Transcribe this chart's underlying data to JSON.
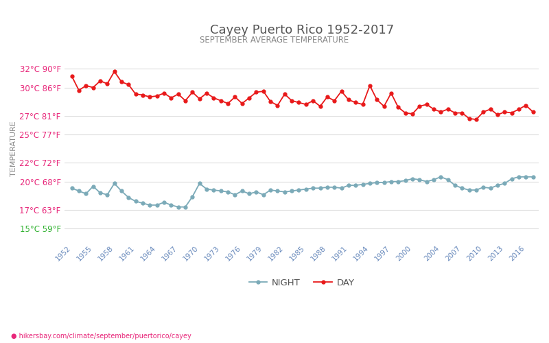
{
  "title": "Cayey Puerto Rico 1952-2017",
  "subtitle": "SEPTEMBER AVERAGE TEMPERATURE",
  "xlabel_url": "hikersbay.com/climate/september/puertorico/cayey",
  "ylabel": "TEMPERATURE",
  "legend_night": "NIGHT",
  "legend_day": "DAY",
  "years": [
    1952,
    1953,
    1954,
    1955,
    1956,
    1957,
    1958,
    1959,
    1960,
    1961,
    1962,
    1963,
    1964,
    1965,
    1966,
    1967,
    1968,
    1969,
    1970,
    1971,
    1972,
    1973,
    1974,
    1975,
    1976,
    1977,
    1978,
    1979,
    1980,
    1981,
    1982,
    1983,
    1984,
    1985,
    1986,
    1987,
    1988,
    1989,
    1990,
    1991,
    1992,
    1993,
    1994,
    1995,
    1996,
    1997,
    1998,
    1999,
    2000,
    2001,
    2002,
    2003,
    2004,
    2005,
    2006,
    2007,
    2008,
    2009,
    2010,
    2011,
    2012,
    2013,
    2014,
    2015,
    2016,
    2017
  ],
  "day_temps": [
    31.2,
    29.7,
    30.2,
    30.0,
    30.7,
    30.4,
    31.7,
    30.6,
    30.3,
    29.3,
    29.2,
    29.0,
    29.1,
    29.4,
    28.9,
    29.3,
    28.6,
    29.5,
    28.8,
    29.4,
    28.9,
    28.6,
    28.3,
    29.0,
    28.3,
    28.9,
    29.5,
    29.6,
    28.5,
    28.1,
    29.3,
    28.6,
    28.4,
    28.2,
    28.6,
    28.0,
    29.0,
    28.6,
    29.6,
    28.7,
    28.4,
    28.2,
    30.2,
    28.7,
    28.0,
    29.4,
    27.9,
    27.3,
    27.2,
    28.0,
    28.2,
    27.7,
    27.4,
    27.7,
    27.3,
    27.3,
    26.7,
    26.6,
    27.4,
    27.7,
    27.1,
    27.4,
    27.3,
    27.7,
    28.1,
    27.4
  ],
  "night_temps": [
    19.3,
    19.0,
    18.7,
    19.5,
    18.8,
    18.6,
    19.8,
    19.0,
    18.3,
    17.9,
    17.7,
    17.5,
    17.5,
    17.8,
    17.5,
    17.3,
    17.3,
    18.4,
    19.8,
    19.2,
    19.1,
    19.0,
    18.9,
    18.6,
    19.0,
    18.7,
    18.9,
    18.6,
    19.1,
    19.0,
    18.9,
    19.0,
    19.1,
    19.2,
    19.3,
    19.3,
    19.4,
    19.4,
    19.3,
    19.6,
    19.6,
    19.7,
    19.8,
    19.9,
    19.9,
    20.0,
    20.0,
    20.1,
    20.3,
    20.2,
    20.0,
    20.2,
    20.5,
    20.2,
    19.6,
    19.3,
    19.1,
    19.1,
    19.4,
    19.3,
    19.6,
    19.8,
    20.3,
    20.5,
    20.5,
    20.5
  ],
  "day_color": "#e8191a",
  "night_color": "#7baab8",
  "title_color": "#555555",
  "subtitle_color": "#888888",
  "ylabel_color": "#888888",
  "tick_label_color": "#e8277a",
  "tick_label_color_bottom": "#32b232",
  "xtick_color": "#6688bb",
  "grid_color": "#dddddd",
  "background_color": "#ffffff",
  "yticks_celsius": [
    15,
    17,
    20,
    22,
    25,
    27,
    30,
    32
  ],
  "yticks_fahrenheit": [
    59,
    63,
    68,
    72,
    77,
    81,
    86,
    90
  ],
  "ylim_celsius": [
    13.5,
    33.5
  ],
  "xlim": [
    1951.0,
    2017.8
  ],
  "xtick_years": [
    1952,
    1955,
    1958,
    1961,
    1964,
    1967,
    1970,
    1973,
    1976,
    1979,
    1982,
    1985,
    1988,
    1991,
    1994,
    1997,
    2000,
    2004,
    2007,
    2010,
    2013,
    2016
  ],
  "marker_size": 3.5,
  "line_width": 1.3,
  "figsize": [
    8.0,
    5.0
  ],
  "dpi": 100
}
